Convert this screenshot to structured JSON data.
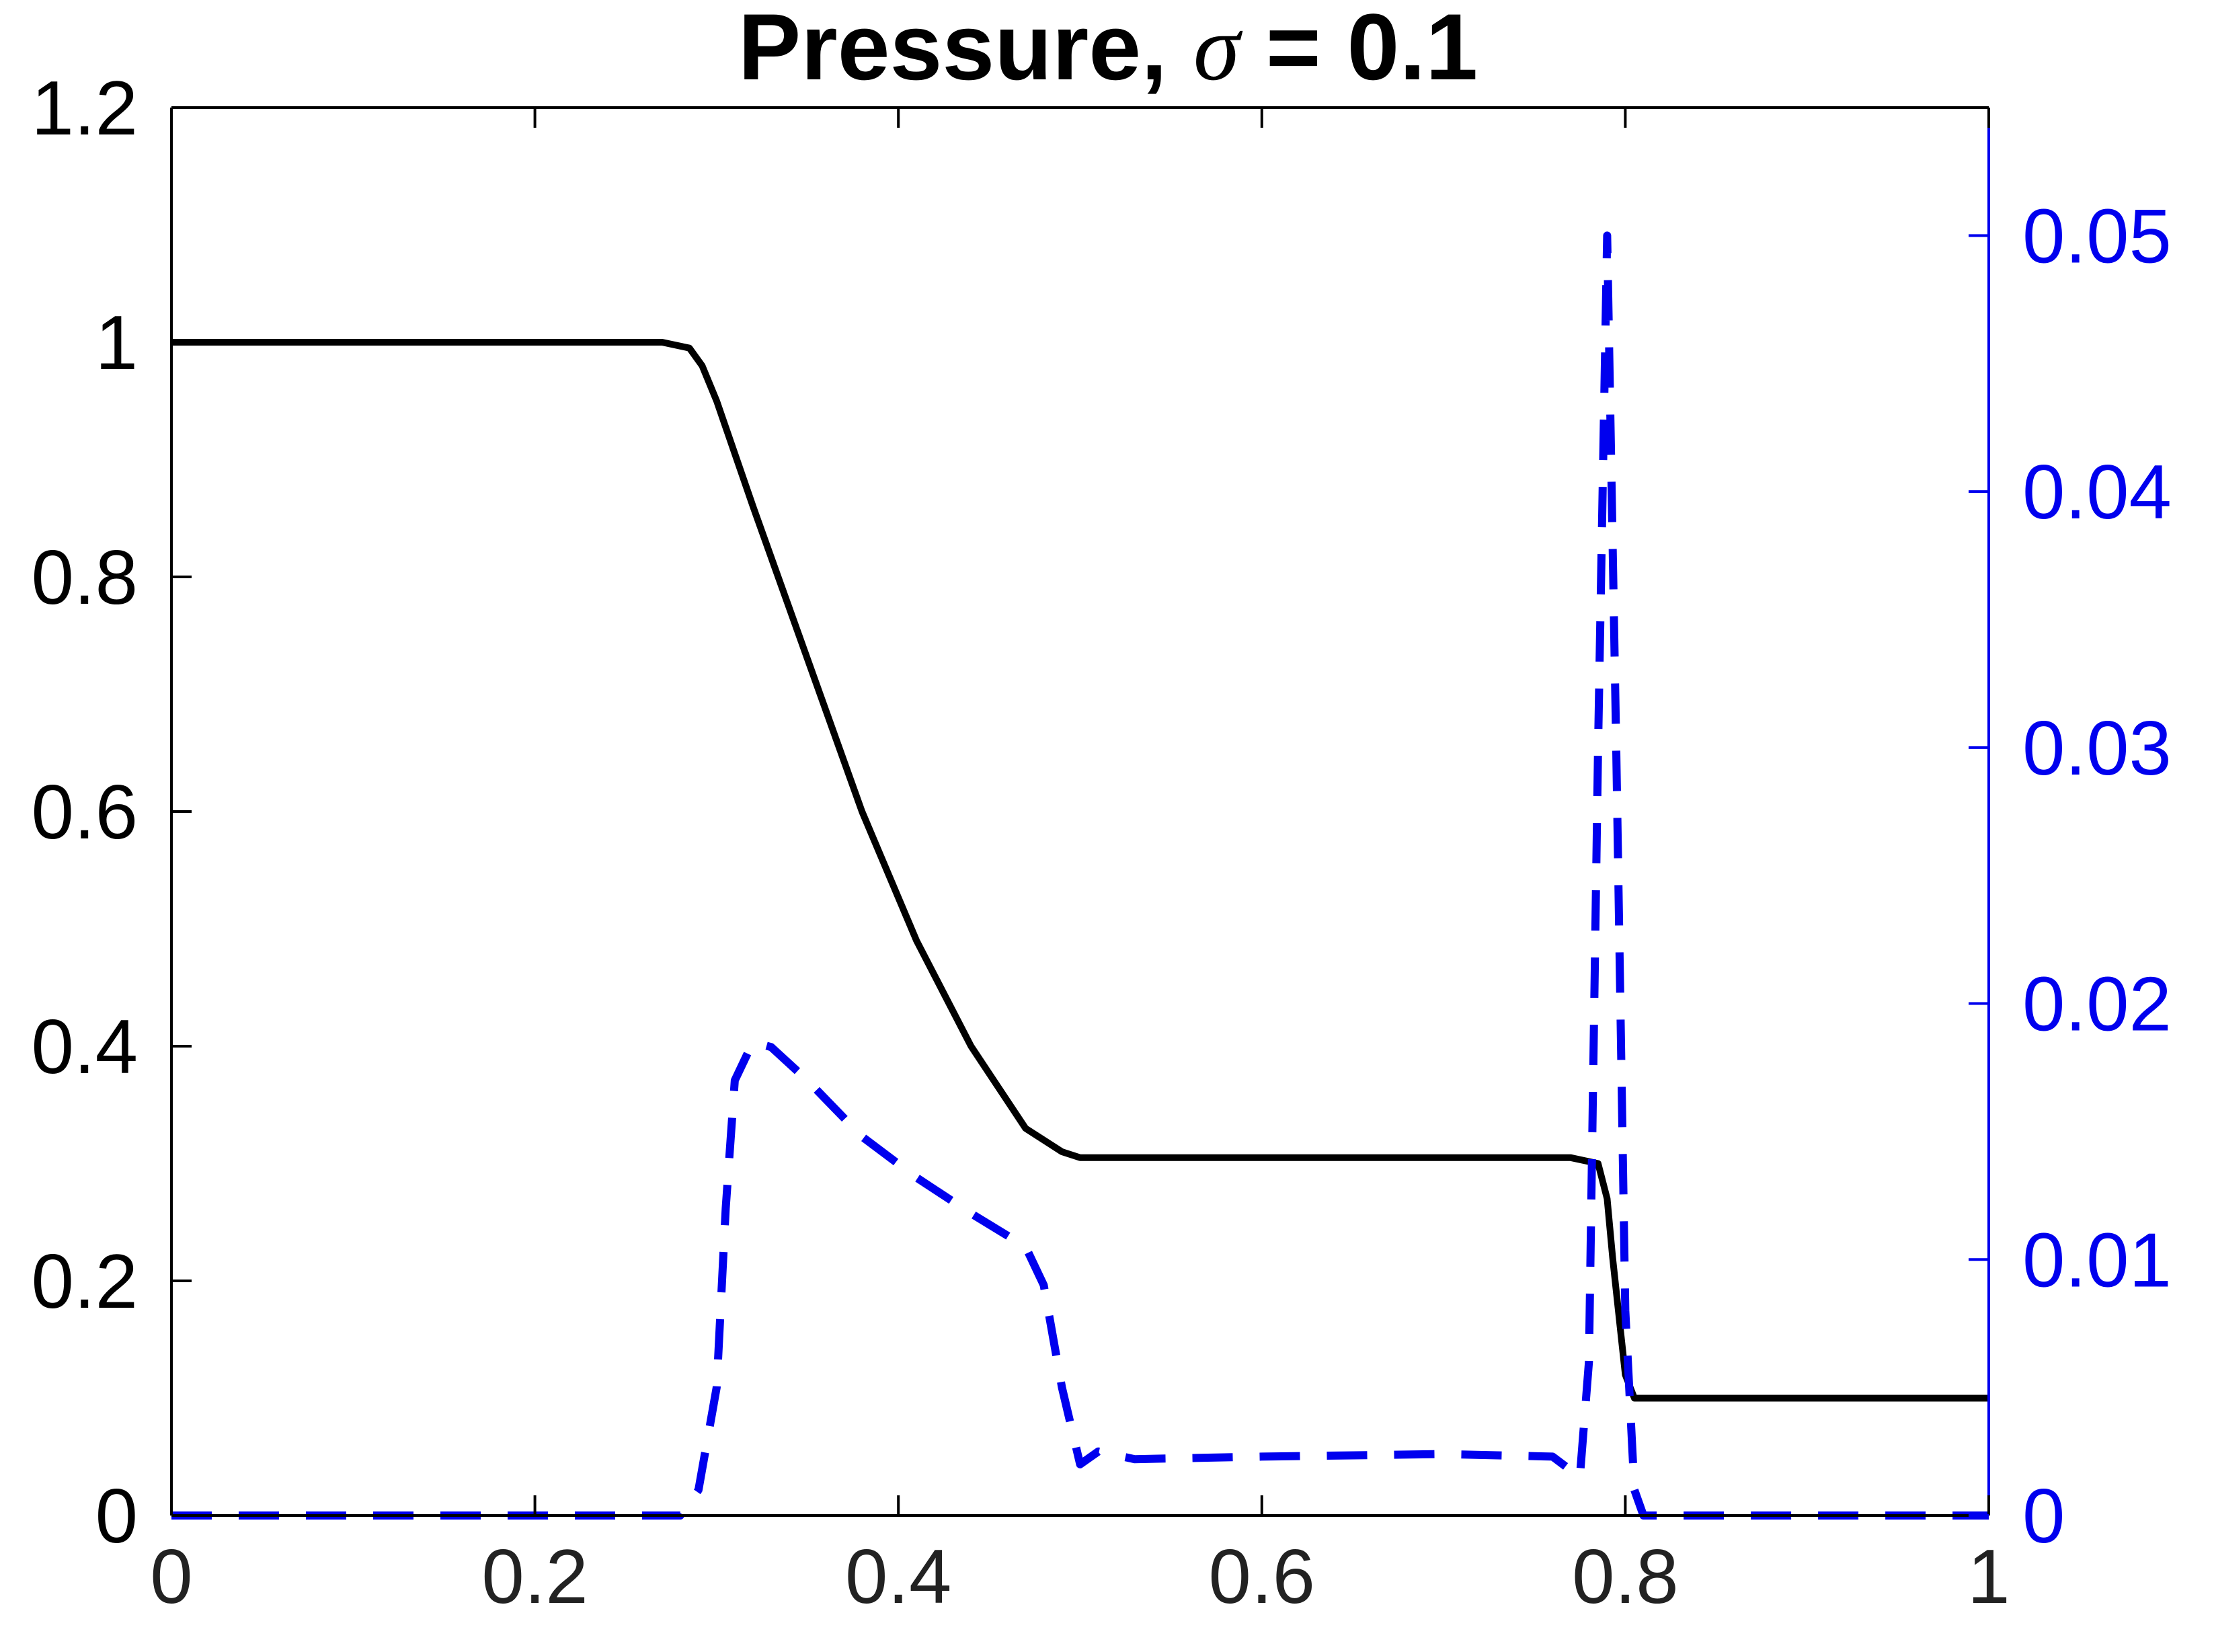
{
  "chart_data": {
    "type": "line",
    "title_prefix": "Pressure, ",
    "title_symbol": "σ",
    "title_suffix": " = 0.1",
    "xlim": [
      0,
      1
    ],
    "ylim_left": [
      0,
      1.2
    ],
    "ylim_right": [
      0,
      0.055
    ],
    "x_ticks": [
      "0",
      "0.2",
      "0.4",
      "0.6",
      "0.8",
      "1"
    ],
    "y_left_ticks": [
      "0",
      "0.2",
      "0.4",
      "0.6",
      "0.8",
      "1",
      "1.2"
    ],
    "y_right_ticks": [
      "0",
      "0.01",
      "0.02",
      "0.03",
      "0.04",
      "0.05"
    ],
    "colors": {
      "left_series": "#000000",
      "right_series": "#0000ee",
      "left_axis": "#000000",
      "right_axis": "#0000ee"
    },
    "series": [
      {
        "axis": "left",
        "style": "solid",
        "x": [
          0,
          0.27,
          0.285,
          0.292,
          0.3,
          0.32,
          0.35,
          0.38,
          0.41,
          0.44,
          0.47,
          0.49,
          0.5,
          0.51,
          0.6,
          0.7,
          0.77,
          0.785,
          0.79,
          0.793,
          0.8,
          0.805,
          1
        ],
        "y": [
          1.0,
          1.0,
          0.995,
          0.98,
          0.95,
          0.86,
          0.73,
          0.6,
          0.49,
          0.4,
          0.33,
          0.31,
          0.305,
          0.305,
          0.305,
          0.305,
          0.305,
          0.3,
          0.27,
          0.22,
          0.12,
          0.1,
          0.1
        ]
      },
      {
        "axis": "right",
        "style": "dashed",
        "x": [
          0,
          0.28,
          0.29,
          0.3,
          0.305,
          0.31,
          0.32,
          0.33,
          0.35,
          0.38,
          0.41,
          0.44,
          0.47,
          0.48,
          0.49,
          0.5,
          0.51,
          0.53,
          0.6,
          0.7,
          0.76,
          0.775,
          0.78,
          0.785,
          0.79,
          0.795,
          0.8,
          0.805,
          0.81,
          1
        ],
        "y": [
          0,
          0,
          0.001,
          0.005,
          0.012,
          0.017,
          0.0185,
          0.0183,
          0.017,
          0.0148,
          0.0132,
          0.0118,
          0.0105,
          0.009,
          0.005,
          0.002,
          0.0025,
          0.0022,
          0.0023,
          0.0024,
          0.0023,
          0.0015,
          0.006,
          0.03,
          0.05,
          0.03,
          0.008,
          0.001,
          0,
          0
        ]
      }
    ]
  }
}
